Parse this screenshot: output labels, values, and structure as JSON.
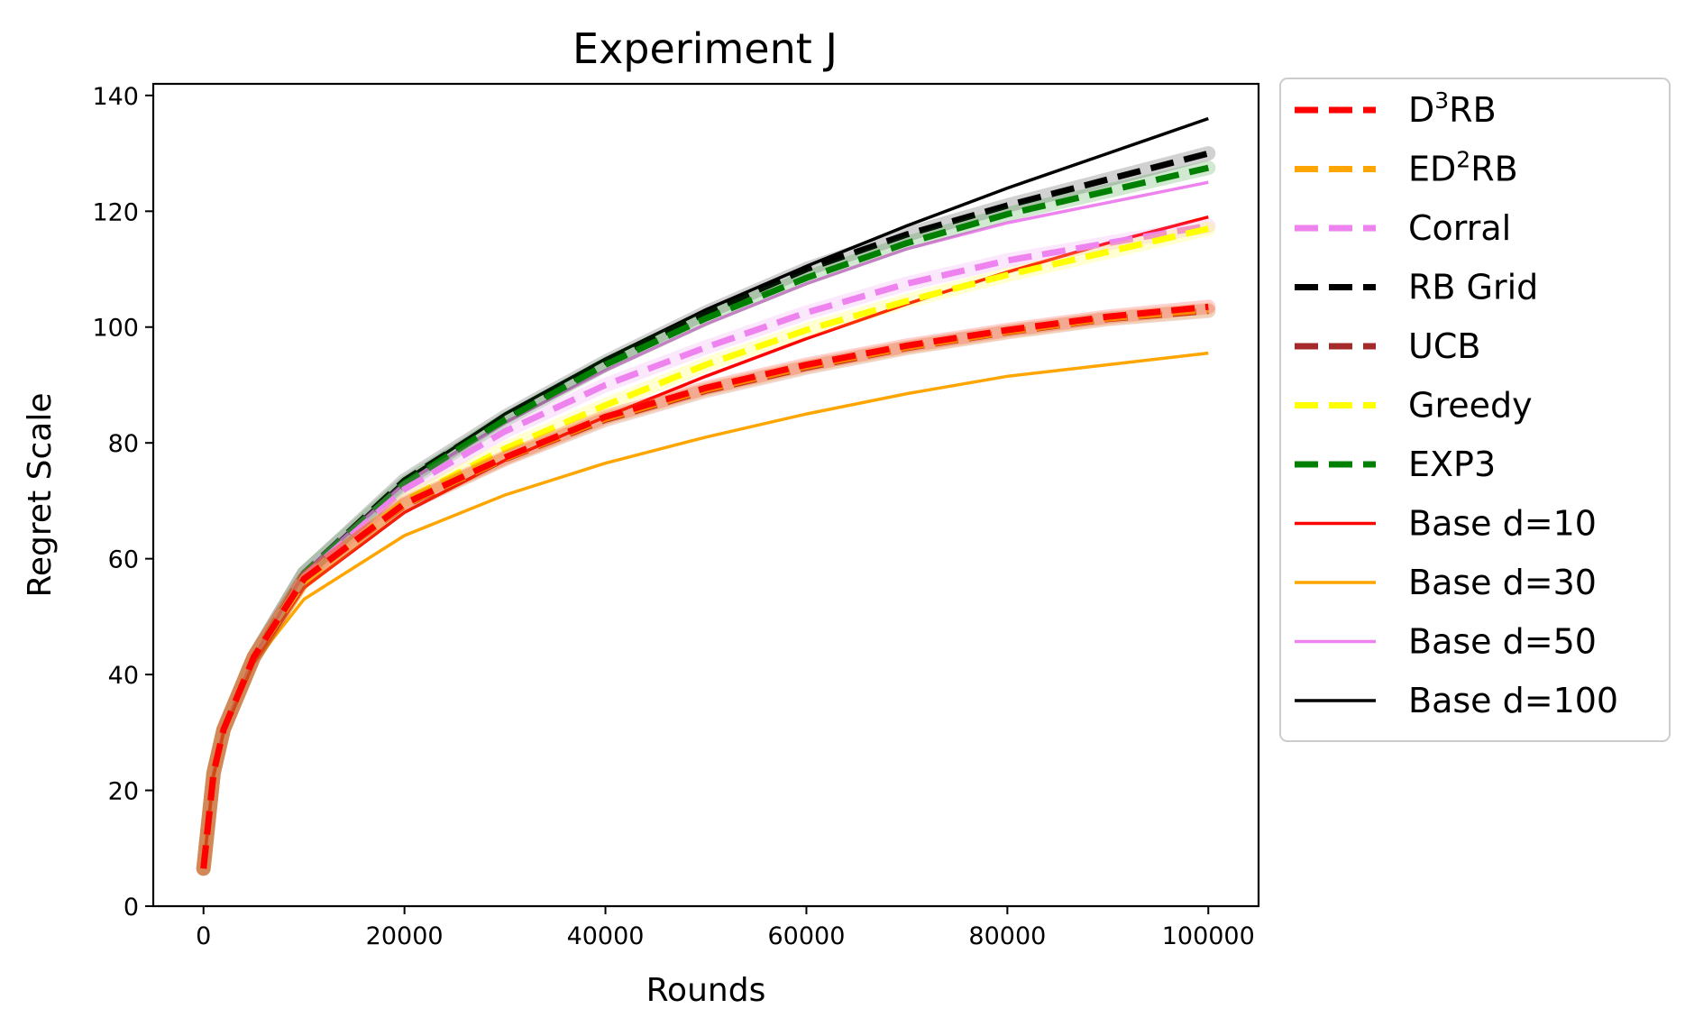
{
  "chart_data": {
    "type": "line",
    "title": "Experiment J",
    "xlabel": "Rounds",
    "ylabel": "Regret Scale",
    "xlim": [
      -5000,
      105000
    ],
    "ylim": [
      0,
      142
    ],
    "xticks": [
      0,
      20000,
      40000,
      60000,
      80000,
      100000
    ],
    "yticks": [
      0,
      20,
      40,
      60,
      80,
      100,
      120,
      140
    ],
    "grid": false,
    "legend_position": "outside-right",
    "x": [
      0,
      1000,
      2000,
      5000,
      10000,
      20000,
      30000,
      40000,
      50000,
      60000,
      70000,
      80000,
      90000,
      100000
    ],
    "series": [
      {
        "name": "D",
        "sup": "3",
        "after": "RB",
        "color": "#ff0000",
        "dash": "dashed",
        "values": [
          6.5,
          23,
          30.5,
          43,
          56.5,
          69.5,
          77.5,
          84.5,
          89.5,
          93.5,
          96.8,
          99.5,
          101.8,
          103.5
        ]
      },
      {
        "name": "ED",
        "sup": "2",
        "after": "RB",
        "color": "#ffa500",
        "dash": "dashed",
        "values": [
          6.5,
          23,
          30.5,
          43,
          56.5,
          69.3,
          77.3,
          84.2,
          89.2,
          93.2,
          96.5,
          99.2,
          101.5,
          103
        ]
      },
      {
        "name": "Corral",
        "color": "#ee82ee",
        "dash": "dashed",
        "values": [
          6.5,
          23,
          30.5,
          43,
          57,
          72,
          82,
          90,
          96.5,
          102.5,
          107.5,
          111.5,
          114.5,
          117.5
        ]
      },
      {
        "name": "RB Grid",
        "color": "#000000",
        "dash": "dashed",
        "values": [
          6.5,
          23,
          30.5,
          43,
          57.5,
          73.5,
          84.5,
          94,
          102.5,
          110,
          116,
          121,
          125.5,
          130
        ]
      },
      {
        "name": "UCB",
        "color": "#a52a2a",
        "dash": "dashed",
        "values": [
          6.5,
          23,
          30.5,
          43,
          56.5,
          69.2,
          77.2,
          84,
          89,
          93,
          96.4,
          99.1,
          101.4,
          102.8
        ]
      },
      {
        "name": "Greedy",
        "color": "#ffff00",
        "dash": "dashed",
        "values": [
          6.5,
          23,
          30.5,
          43,
          56,
          70,
          79,
          86.5,
          93.5,
          99.5,
          104.5,
          109,
          113,
          117
        ]
      },
      {
        "name": "EXP3",
        "color": "#008000",
        "dash": "dashed",
        "values": [
          6.5,
          23,
          30.5,
          43,
          57.5,
          73,
          84,
          93.5,
          101.5,
          108.5,
          114.5,
          119.5,
          123.5,
          127.5
        ]
      },
      {
        "name": "Base d=10",
        "color": "#ff0000",
        "dash": "solid",
        "values": [
          6.5,
          22.5,
          30,
          42,
          55,
          68,
          77,
          84.5,
          91.5,
          98,
          104,
          109.5,
          114.5,
          119
        ]
      },
      {
        "name": "Base d=30",
        "color": "#ffa500",
        "dash": "solid",
        "values": [
          6.5,
          22.5,
          30,
          42,
          53,
          64,
          71,
          76.5,
          81,
          85,
          88.5,
          91.5,
          93.5,
          95.5
        ]
      },
      {
        "name": "Base d=50",
        "color": "#ee82ee",
        "dash": "solid",
        "values": [
          6.5,
          23,
          30.5,
          43,
          57.5,
          73,
          83.5,
          92.5,
          100.5,
          107.5,
          113.5,
          118,
          121.5,
          125
        ]
      },
      {
        "name": "Base d=100",
        "color": "#000000",
        "dash": "solid",
        "values": [
          6.5,
          23,
          30.5,
          43,
          57.5,
          73.5,
          85,
          94.5,
          103,
          110.5,
          117.5,
          124,
          130,
          136
        ]
      }
    ]
  }
}
